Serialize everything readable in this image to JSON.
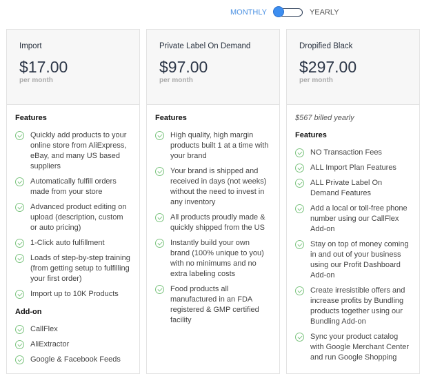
{
  "billing_toggle": {
    "monthly": "MONTHLY",
    "yearly": "YEARLY",
    "selected": "monthly"
  },
  "accent": "#3d8ef0",
  "plans": [
    {
      "name": "Import",
      "price": "$17.00",
      "period": "per month",
      "features_title": "Features",
      "features": [
        "Quickly add products to your online store from AliExpress, eBay, and many US based suppliers",
        "Automatically fulfill orders made from your store",
        "Advanced product editing on upload (description, custom or auto pricing)",
        "1-Click auto fulfillment",
        "Loads of step-by-step training (from getting setup to fulfilling your first order)",
        "Import up to 10K Products"
      ],
      "addon_title": "Add-on",
      "addons": [
        "CallFlex",
        "AliExtractor",
        "Google & Facebook Feeds"
      ]
    },
    {
      "name": "Private Label On Demand",
      "price": "$97.00",
      "period": "per month",
      "features_title": "Features",
      "features": [
        "High quality, high margin products built 1 at a time with your brand",
        "Your brand is shipped and received in days (not weeks) without the need to invest in any inventory",
        "All products proudly made & quickly shipped from the US",
        "Instantly build your own brand (100% unique to you) with no minimums and no extra labeling costs",
        "Food products all manufactured in an FDA registered & GMP certified facility"
      ]
    },
    {
      "name": "Dropified Black",
      "price": "$297.00",
      "period": "per month",
      "billed": "$567 billed yearly",
      "features_title": "Features",
      "features": [
        "NO Transaction Fees",
        "ALL Import Plan Features",
        "ALL Private Label On Demand Features",
        "Add a local or toll-free phone number using our CallFlex Add-on",
        "Stay on top of money coming in and out of your business using our Profit Dashboard Add-on",
        "Create irresistible offers and increase profits by Bundling products together using our Bundling Add-on",
        "Sync your product catalog with Google Merchant Center and run Google Shopping"
      ]
    }
  ]
}
